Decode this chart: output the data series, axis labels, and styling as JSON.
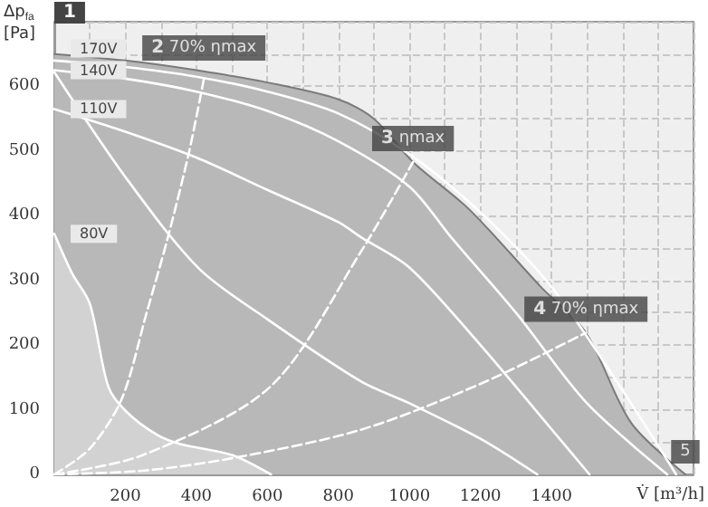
{
  "chart_data": {
    "type": "line",
    "xlabel": "V̇ [m³/h]",
    "ylabel": "Δp$_{fa}$ [Pa]",
    "xlim": [
      0,
      1800
    ],
    "ylim": [
      0,
      700
    ],
    "xticks": [
      {
        "value": 0,
        "label": null
      },
      {
        "value": 100,
        "label": null
      },
      200,
      {
        "value": 300,
        "label": null
      },
      400,
      {
        "value": 500,
        "label": null
      },
      600,
      {
        "value": 700,
        "label": null
      },
      800,
      {
        "value": 900,
        "label": null
      },
      1000,
      {
        "value": 1100,
        "label": null
      },
      1200,
      {
        "value": 1300,
        "label": null
      },
      1400,
      {
        "value": 1500,
        "label": null
      },
      {
        "value": 1600,
        "label": null
      },
      {
        "value": 1700,
        "label": null
      },
      {
        "value": 1800,
        "label": null
      }
    ],
    "yticks": [
      0,
      {
        "value": 50,
        "label": null
      },
      100,
      {
        "value": 150,
        "label": null
      },
      200,
      {
        "value": 250,
        "label": null
      },
      300,
      {
        "value": 350,
        "label": null
      },
      400,
      {
        "value": 450,
        "label": null
      },
      500,
      {
        "value": 550,
        "label": null
      },
      600,
      {
        "value": 650,
        "label": null
      },
      {
        "value": 700,
        "label": null
      }
    ],
    "grid": true,
    "legend": false,
    "marker": "none",
    "line_style": "solid",
    "series": [
      {
        "type": "area",
        "color": "#b8b8b8",
        "x": [
          0,
          200,
          400,
          600,
          800,
          900,
          1010,
          1168,
          1370,
          1497,
          1624,
          1777
        ],
        "values": [
          650,
          640,
          625,
          606,
          580,
          550,
          483,
          410,
          290,
          219,
          80,
          0
        ]
      },
      {
        "name": "170V",
        "color": "#ffffff",
        "x": [
          0,
          200,
          400,
          600,
          800,
          1000,
          1200,
          1400,
          1600,
          1751
        ],
        "values": [
          640,
          630,
          615,
          592,
          558,
          495,
          405,
          290,
          130,
          0
        ]
      },
      {
        "name": "140V",
        "color": "#ffffff",
        "x": [
          0,
          200,
          400,
          600,
          800,
          1000,
          1117,
          1300,
          1500,
          1726
        ],
        "values": [
          625,
          612,
          592,
          562,
          515,
          445,
          367,
          250,
          110,
          0
        ]
      },
      {
        "name": "110V",
        "color": "#ffffff",
        "x": [
          0,
          200,
          400,
          600,
          800,
          863,
          1000,
          1200,
          1400,
          1507
        ],
        "values": [
          565,
          530,
          490,
          440,
          390,
          367,
          320,
          200,
          70,
          0
        ]
      },
      {
        "color": "#ffffff",
        "x": [
          0,
          200,
          406,
          600,
          863,
          1000,
          1200,
          1360
        ],
        "values": [
          622,
          460,
          319,
          240,
          144,
          110,
          55,
          0
        ]
      },
      {
        "name": "80V",
        "type": "area",
        "color": "#d2d2d2",
        "x": [
          0,
          50,
          100,
          152,
          203,
          290,
          355,
          500,
          610
        ],
        "values": [
          372,
          311,
          264,
          136,
          97,
          61,
          47,
          30,
          0
        ]
      },
      {
        "color": "#ffffff",
        "line_style": "dashed",
        "x": [
          0,
          100,
          190,
          260,
          320,
          380,
          421
        ],
        "values": [
          0,
          40,
          117,
          250,
          367,
          500,
          611
        ]
      },
      {
        "color": "#ffffff",
        "line_style": "dashed",
        "x": [
          0,
          250,
          609,
          863,
          1010
        ],
        "values": [
          0,
          30,
          136,
          344,
          483
        ]
      },
      {
        "color": "#ffffff",
        "line_style": "dashed",
        "x": [
          0,
          254,
          500,
          863,
          1200,
          1497
        ],
        "values": [
          0,
          6,
          25,
          69,
          140,
          219
        ]
      }
    ],
    "annotations": [
      "1",
      {
        "text": "2 70% ηmax",
        "x": 421,
        "y": 623
      },
      {
        "text": "3 ηmax",
        "x": 1010,
        "y": 483
      },
      {
        "text": "4 70% ηmax",
        "x": 1497,
        "y": 219
      },
      {
        "text": "5",
        "x": 1777,
        "y": 0
      }
    ]
  }
}
